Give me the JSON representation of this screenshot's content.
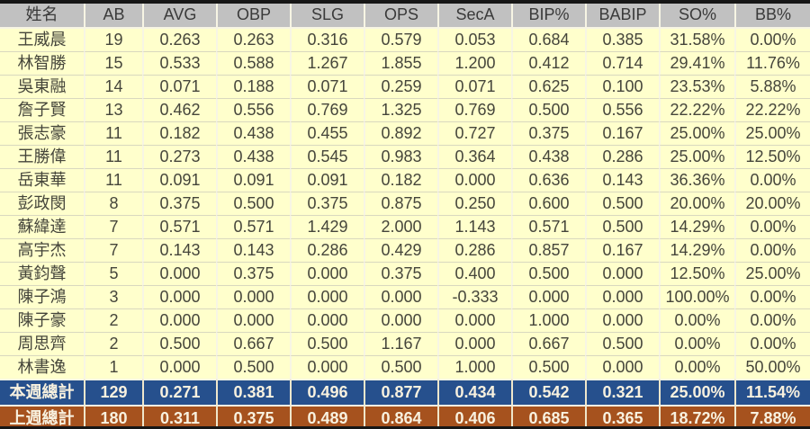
{
  "chart_data": {
    "type": "table",
    "title": "",
    "columns": [
      "姓名",
      "AB",
      "AVG",
      "OBP",
      "SLG",
      "OPS",
      "SecA",
      "BIP%",
      "BABIP",
      "SO%",
      "BB%"
    ],
    "rows": [
      [
        "王威晨",
        "19",
        "0.263",
        "0.263",
        "0.316",
        "0.579",
        "0.053",
        "0.684",
        "0.385",
        "31.58%",
        "0.00%"
      ],
      [
        "林智勝",
        "15",
        "0.533",
        "0.588",
        "1.267",
        "1.855",
        "1.200",
        "0.412",
        "0.714",
        "29.41%",
        "11.76%"
      ],
      [
        "吳東融",
        "14",
        "0.071",
        "0.188",
        "0.071",
        "0.259",
        "0.071",
        "0.625",
        "0.100",
        "23.53%",
        "5.88%"
      ],
      [
        "詹子賢",
        "13",
        "0.462",
        "0.556",
        "0.769",
        "1.325",
        "0.769",
        "0.500",
        "0.556",
        "22.22%",
        "22.22%"
      ],
      [
        "張志豪",
        "11",
        "0.182",
        "0.438",
        "0.455",
        "0.892",
        "0.727",
        "0.375",
        "0.167",
        "25.00%",
        "25.00%"
      ],
      [
        "王勝偉",
        "11",
        "0.273",
        "0.438",
        "0.545",
        "0.983",
        "0.364",
        "0.438",
        "0.286",
        "25.00%",
        "12.50%"
      ],
      [
        "岳東華",
        "11",
        "0.091",
        "0.091",
        "0.091",
        "0.182",
        "0.000",
        "0.636",
        "0.143",
        "36.36%",
        "0.00%"
      ],
      [
        "彭政閔",
        "8",
        "0.375",
        "0.500",
        "0.375",
        "0.875",
        "0.250",
        "0.600",
        "0.500",
        "20.00%",
        "20.00%"
      ],
      [
        "蘇緯達",
        "7",
        "0.571",
        "0.571",
        "1.429",
        "2.000",
        "1.143",
        "0.571",
        "0.500",
        "14.29%",
        "0.00%"
      ],
      [
        "高宇杰",
        "7",
        "0.143",
        "0.143",
        "0.286",
        "0.429",
        "0.286",
        "0.857",
        "0.167",
        "14.29%",
        "0.00%"
      ],
      [
        "黃鈞聲",
        "5",
        "0.000",
        "0.375",
        "0.000",
        "0.375",
        "0.400",
        "0.500",
        "0.000",
        "12.50%",
        "25.00%"
      ],
      [
        "陳子鴻",
        "3",
        "0.000",
        "0.000",
        "0.000",
        "0.000",
        "-0.333",
        "0.000",
        "0.000",
        "100.00%",
        "0.00%"
      ],
      [
        "陳子豪",
        "2",
        "0.000",
        "0.000",
        "0.000",
        "0.000",
        "0.000",
        "1.000",
        "0.000",
        "0.00%",
        "0.00%"
      ],
      [
        "周思齊",
        "2",
        "0.500",
        "0.667",
        "0.500",
        "1.167",
        "0.000",
        "0.667",
        "0.500",
        "0.00%",
        "0.00%"
      ],
      [
        "林書逸",
        "1",
        "0.000",
        "0.500",
        "0.000",
        "0.500",
        "1.000",
        "0.500",
        "0.000",
        "0.00%",
        "50.00%"
      ]
    ],
    "totals": [
      {
        "label": "本週總計",
        "values": [
          "129",
          "0.271",
          "0.381",
          "0.496",
          "0.877",
          "0.434",
          "0.542",
          "0.321",
          "25.00%",
          "11.54%"
        ]
      },
      {
        "label": "上週總計",
        "values": [
          "180",
          "0.311",
          "0.375",
          "0.489",
          "0.864",
          "0.406",
          "0.685",
          "0.365",
          "18.72%",
          "7.88%"
        ]
      }
    ],
    "layout_hints": {
      "grid": true,
      "header_position": "top",
      "total_row_styles": [
        "this-week",
        "last-week"
      ]
    }
  },
  "colors": {
    "frame_border": "#161616",
    "header_bg": "#C1C1C1",
    "header_text": "#3A3A3A",
    "row_bg": "#FFFFCC",
    "row_text": "#45453B",
    "grid_vertical": "#F7F5E4",
    "grid_horizontal": "#D9D8BF",
    "this_week_bg": "#26508D",
    "last_week_bg": "#A6521E",
    "totals_text": "#F8F1DF"
  }
}
